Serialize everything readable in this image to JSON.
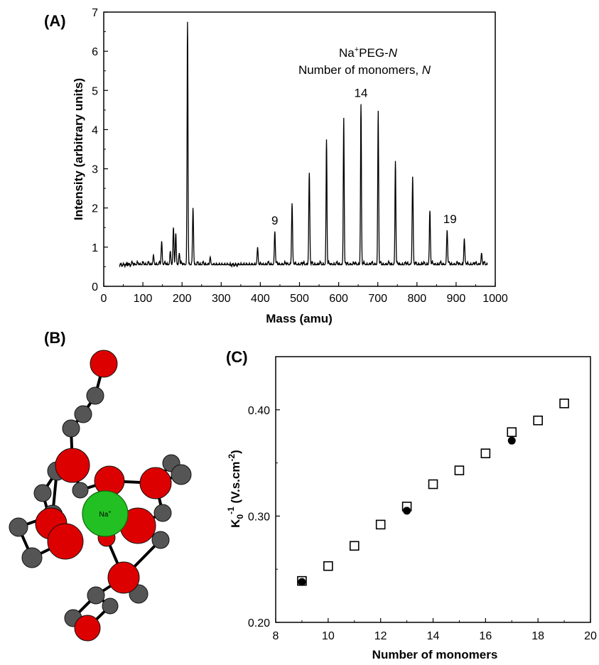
{
  "panels": {
    "a": "(A)",
    "b": "(B)",
    "c": "(C)"
  },
  "chart_data": [
    {
      "type": "line",
      "panel": "(A)",
      "xlabel": "Mass (amu)",
      "ylabel": "Intensity (arbitrary units)",
      "xlim": [
        0,
        1000
      ],
      "ylim": [
        0,
        7
      ],
      "xticks": [
        0,
        100,
        200,
        300,
        400,
        500,
        600,
        700,
        800,
        900,
        1000
      ],
      "yticks": [
        0,
        1,
        2,
        3,
        4,
        5,
        6,
        7
      ],
      "annotation_line1": "Na",
      "annotation_sup": "+",
      "annotation_line1_rest": "PEG-",
      "annotation_line1_italic": "N",
      "annotation_line2": "Number of monomers, ",
      "annotation_line2_italic": "N",
      "baseline": 0.55,
      "peaks": [
        {
          "x": 127,
          "y": 0.8
        },
        {
          "x": 148,
          "y": 1.15
        },
        {
          "x": 170,
          "y": 0.9
        },
        {
          "x": 178,
          "y": 1.5
        },
        {
          "x": 184,
          "y": 1.35
        },
        {
          "x": 193,
          "y": 0.85
        },
        {
          "x": 214,
          "y": 6.75
        },
        {
          "x": 228,
          "y": 2.0
        },
        {
          "x": 272,
          "y": 0.75
        },
        {
          "x": 393,
          "y": 1.0
        },
        {
          "x": 437,
          "y": 1.4
        },
        {
          "x": 481,
          "y": 2.12
        },
        {
          "x": 525,
          "y": 2.9
        },
        {
          "x": 569,
          "y": 3.75
        },
        {
          "x": 613,
          "y": 4.3
        },
        {
          "x": 657,
          "y": 4.65
        },
        {
          "x": 701,
          "y": 4.48
        },
        {
          "x": 745,
          "y": 3.2
        },
        {
          "x": 789,
          "y": 2.8
        },
        {
          "x": 833,
          "y": 1.93
        },
        {
          "x": 877,
          "y": 1.43
        },
        {
          "x": 921,
          "y": 1.22
        },
        {
          "x": 965,
          "y": 0.85
        }
      ],
      "peak_labels": [
        {
          "text": "9",
          "x": 437,
          "y": 1.4
        },
        {
          "text": "14",
          "x": 657,
          "y": 4.65
        },
        {
          "text": "19",
          "x": 877,
          "y": 1.43
        }
      ]
    },
    {
      "type": "scatter",
      "panel": "(C)",
      "xlabel": "Number of monomers",
      "ylabel_main": "K",
      "ylabel_sub": "0",
      "ylabel_sup": "-1",
      "ylabel_units": " (V.s.cm",
      "ylabel_units_sup": "-2",
      "ylabel_close": ")",
      "xlim": [
        8,
        20
      ],
      "ylim": [
        0.2,
        0.45
      ],
      "xticks": [
        8,
        10,
        12,
        14,
        16,
        18,
        20
      ],
      "yticks": [
        "0.20",
        "0.30",
        "0.40"
      ],
      "ytick_values": [
        0.2,
        0.3,
        0.4
      ],
      "series": [
        {
          "marker": "open-square",
          "x": [
            9,
            10,
            11,
            12,
            13,
            14,
            15,
            16,
            17,
            18,
            19
          ],
          "y": [
            0.239,
            0.253,
            0.272,
            0.292,
            0.309,
            0.33,
            0.343,
            0.359,
            0.379,
            0.39,
            0.406
          ]
        },
        {
          "marker": "filled-circle",
          "x": [
            9,
            13,
            17
          ],
          "y": [
            0.238,
            0.305,
            0.371
          ]
        }
      ]
    }
  ],
  "molecule": {
    "center_label": "Na",
    "center_sup": "+",
    "carbon_color": "#555555",
    "oxygen_color": "#dd0000",
    "sodium_color": "#22c022"
  }
}
